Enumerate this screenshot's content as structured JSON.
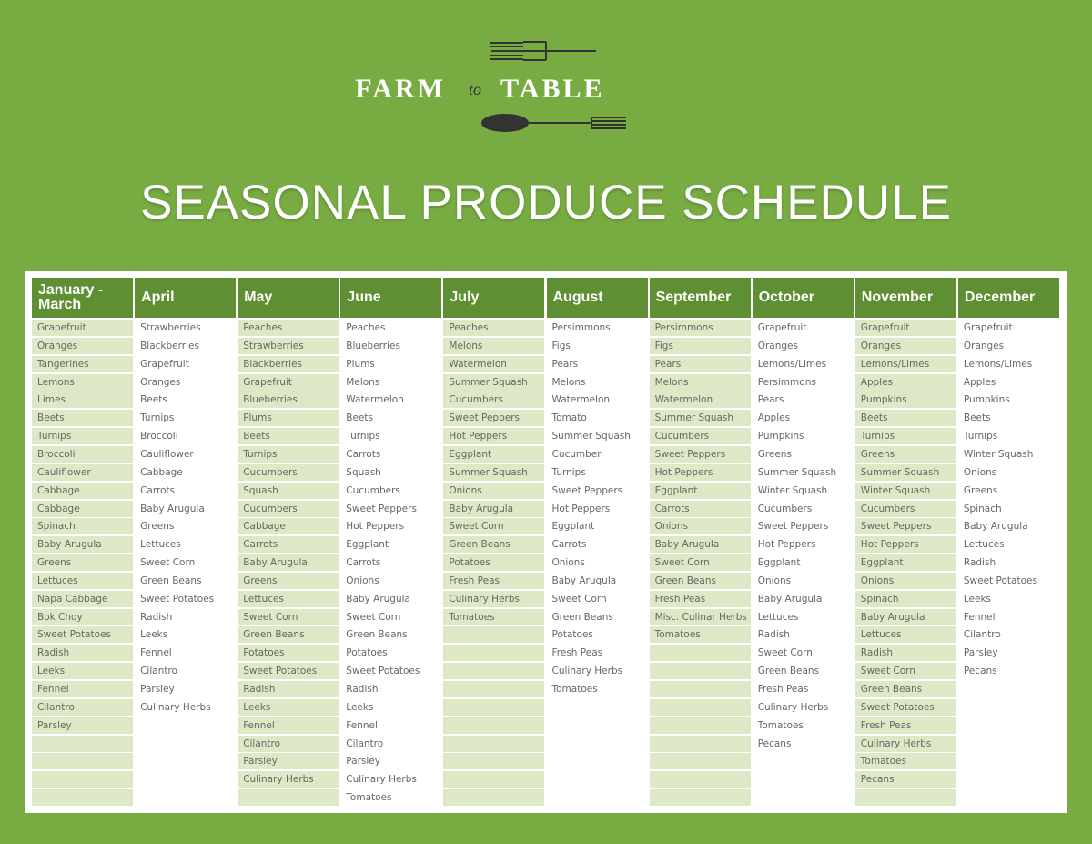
{
  "logo": {
    "left": "FARM",
    "middle": "to",
    "right": "TABLE"
  },
  "title": "SEASONAL PRODUCE SCHEDULE",
  "table": {
    "columns": [
      {
        "header": "January - March",
        "items": [
          "Grapefruit",
          "Oranges",
          "Tangerines",
          "Lemons",
          "Limes",
          "Beets",
          "Turnips",
          "Broccoli",
          "Cauliflower",
          "Cabbage",
          "Cabbage",
          "Spinach",
          "Baby Arugula",
          "Greens",
          "Lettuces",
          "Napa Cabbage",
          "Bok Choy",
          "Sweet Potatoes",
          "Radish",
          "Leeks",
          "Fennel",
          "Cilantro",
          "Parsley"
        ]
      },
      {
        "header": "April",
        "items": [
          "Strawberries",
          "Blackberries",
          "Grapefruit",
          "Oranges",
          "Beets",
          "Turnips",
          "Broccoli",
          "Cauliflower",
          "Cabbage",
          "Carrots",
          "Baby Arugula",
          "Greens",
          "Lettuces",
          "Sweet Corn",
          "Green Beans",
          "Sweet Potatoes",
          "Radish",
          "Leeks",
          "Fennel",
          "Cilantro",
          "Parsley",
          "Culinary Herbs"
        ]
      },
      {
        "header": "May",
        "items": [
          "Peaches",
          "Strawberries",
          "Blackberries",
          "Grapefruit",
          "Blueberries",
          "Plums",
          "Beets",
          "Turnips",
          "Cucumbers",
          "Squash",
          "Cucumbers",
          "Cabbage",
          "Carrots",
          "Baby Arugula",
          "Greens",
          "Lettuces",
          "Sweet Corn",
          "Green Beans",
          "Potatoes",
          "Sweet Potatoes",
          "Radish",
          "Leeks",
          "Fennel",
          "Cilantro",
          "Parsley",
          "Culinary Herbs"
        ]
      },
      {
        "header": "June",
        "items": [
          "Peaches",
          "Blueberries",
          "Plums",
          "Melons",
          "Watermelon",
          "Beets",
          "Turnips",
          "Carrots",
          "Squash",
          "Cucumbers",
          "Sweet Peppers",
          "Hot Peppers",
          "Eggplant",
          "Carrots",
          "Onions",
          "Baby Arugula",
          "Sweet Corn",
          "Green Beans",
          "Potatoes",
          "Sweet Potatoes",
          "Radish",
          "Leeks",
          "Fennel",
          "Cilantro",
          "Parsley",
          "Culinary Herbs",
          "Tomatoes"
        ]
      },
      {
        "header": "July",
        "items": [
          "Peaches",
          "Melons",
          "Watermelon",
          "Summer Squash",
          "Cucumbers",
          "Sweet Peppers",
          "Hot Peppers",
          "Eggplant",
          "Summer Squash",
          "Onions",
          "Baby Arugula",
          "Sweet Corn",
          "Green Beans",
          "Potatoes",
          "Fresh Peas",
          "Culinary Herbs",
          "Tomatoes"
        ]
      },
      {
        "header": "August",
        "items": [
          "Persimmons",
          "Figs",
          "Pears",
          "Melons",
          "Watermelon",
          "Tomato",
          "Summer Squash",
          "Cucumber",
          "Turnips",
          "Sweet Peppers",
          "Hot Peppers",
          "Eggplant",
          "Carrots",
          "Onions",
          "Baby Arugula",
          "Sweet Corn",
          "Green Beans",
          "Potatoes",
          "Fresh Peas",
          "Culinary Herbs",
          "Tomatoes"
        ]
      },
      {
        "header": "September",
        "items": [
          "Persimmons",
          "Figs",
          "Pears",
          "Melons",
          "Watermelon",
          "Summer Squash",
          "Cucumbers",
          "Sweet Peppers",
          "Hot Peppers",
          "Eggplant",
          "Carrots",
          "Onions",
          "Baby Arugula",
          "Sweet Corn",
          "Green Beans",
          "Fresh Peas",
          "Misc. Culinar Herbs",
          "Tomatoes"
        ]
      },
      {
        "header": "October",
        "items": [
          "Grapefruit",
          "Oranges",
          "Lemons/Limes",
          "Persimmons",
          "Pears",
          "Apples",
          "Pumpkins",
          "Greens",
          "Summer Squash",
          "Winter Squash",
          "Cucumbers",
          "Sweet Peppers",
          "Hot Peppers",
          "Eggplant",
          "Onions",
          "Baby Arugula",
          "Lettuces",
          "Radish",
          "Sweet Corn",
          "Green Beans",
          "Fresh Peas",
          "Culinary Herbs",
          "Tomatoes",
          "Pecans"
        ]
      },
      {
        "header": "November",
        "items": [
          "Grapefruit",
          "Oranges",
          "Lemons/Limes",
          "Apples",
          "Pumpkins",
          "Beets",
          "Turnips",
          "Greens",
          "Summer Squash",
          "Winter Squash",
          "Cucumbers",
          "Sweet Peppers",
          "Hot Peppers",
          "Eggplant",
          "Onions",
          "Spinach",
          "Baby Arugula",
          "Lettuces",
          "Radish",
          "Sweet Corn",
          "Green Beans",
          "Sweet Potatoes",
          "Fresh Peas",
          "Culinary Herbs",
          "Tomatoes",
          "Pecans"
        ]
      },
      {
        "header": "December",
        "items": [
          "Grapefruit",
          "Oranges",
          "Lemons/Limes",
          "Apples",
          "Pumpkins",
          "Beets",
          "Turnips",
          "Winter Squash",
          "Onions",
          "Greens",
          "Spinach",
          "Baby Arugula",
          "Lettuces",
          "Radish",
          "Sweet Potatoes",
          "Leeks",
          "Fennel",
          "Cilantro",
          "Parsley",
          "Pecans"
        ]
      }
    ]
  }
}
